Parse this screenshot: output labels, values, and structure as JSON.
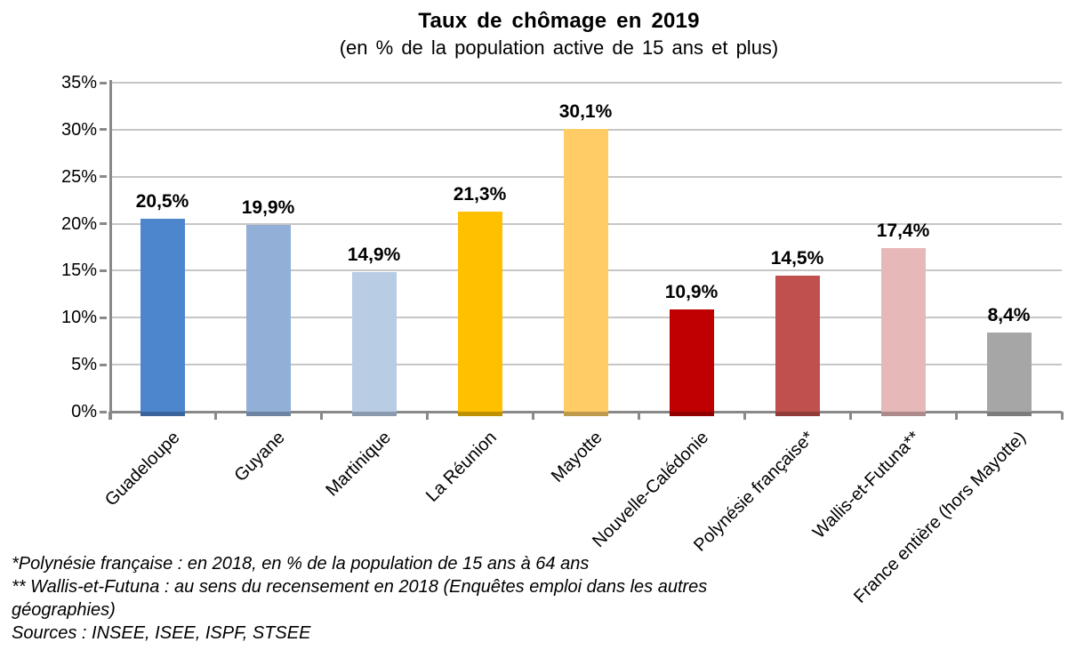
{
  "chart_data": {
    "type": "bar",
    "title": "Taux de chômage en 2019",
    "subtitle": "(en % de la population active de 15 ans et plus)",
    "categories": [
      "Guadeloupe",
      "Guyane",
      "Martinique",
      "La Réunion",
      "Mayotte",
      "Nouvelle-Calédonie",
      "Polynésie française*",
      "Wallis-et-Futuna**",
      "France entière (hors Mayotte)"
    ],
    "values": [
      20.5,
      19.9,
      14.9,
      21.3,
      30.1,
      10.9,
      14.5,
      17.4,
      8.4
    ],
    "value_labels": [
      "20,5%",
      "19,9%",
      "14,9%",
      "21,3%",
      "30,1%",
      "10,9%",
      "14,5%",
      "17,4%",
      "8,4%"
    ],
    "bar_colors": [
      "#4E86CE",
      "#92AFD7",
      "#B8CCE4",
      "#FFC000",
      "#FFCC66",
      "#C00000",
      "#C0504D",
      "#E6B9B8",
      "#A6A6A6"
    ],
    "xlabel": "",
    "ylabel": "",
    "ylim": [
      0,
      35
    ],
    "ytick_step": 5,
    "ytick_labels": [
      "0%",
      "5%",
      "10%",
      "15%",
      "20%",
      "25%",
      "30%",
      "35%"
    ],
    "grid": true,
    "legend": "none",
    "gridline_color": "#C6C6C6",
    "axis_color": "#898989"
  },
  "footnotes": {
    "note_polynesie": "*Polynésie française : en 2018, en % de la population de 15 ans à 64 ans",
    "note_wallis": "** Wallis-et-Futuna : au sens du recensement en 2018 (Enquêtes emploi dans les autres géographies)",
    "sources": "Sources : INSEE, ISEE, ISPF, STSEE"
  }
}
